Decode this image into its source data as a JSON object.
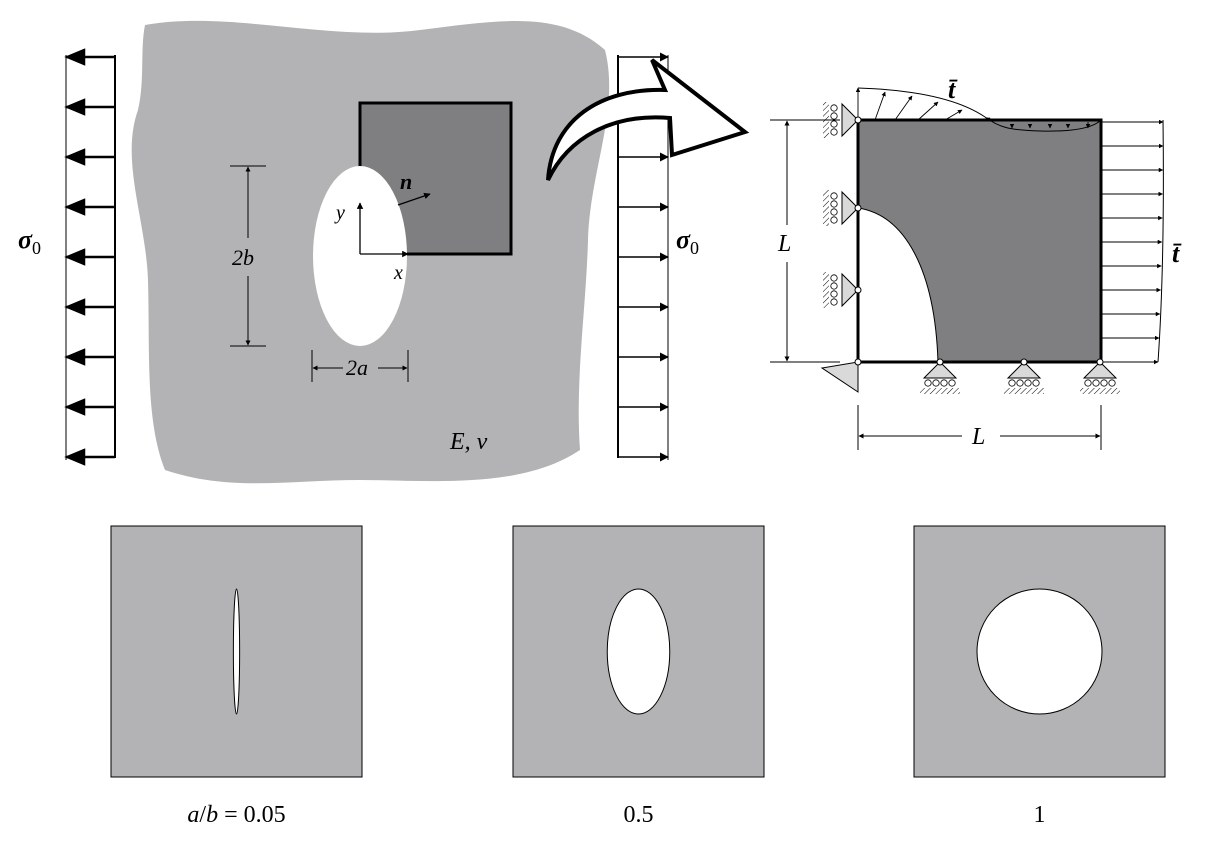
{
  "labels": {
    "sigma_left": "σ",
    "sigma_left_sub": "0",
    "sigma_right": "σ",
    "sigma_right_sub": "0",
    "two_b": "2b",
    "two_a": "2a",
    "axis_x": "x",
    "axis_y": "y",
    "normal": "n",
    "material": "E, ν",
    "L_vertical": "L",
    "L_horizontal": "L",
    "traction_top": "t̄",
    "traction_right": "t̄"
  },
  "panels": [
    {
      "aspect_ratio": 0.05,
      "caption": "a/b = 0.05"
    },
    {
      "aspect_ratio": 0.5,
      "caption": "0.5"
    },
    {
      "aspect_ratio": 1,
      "caption": "1"
    }
  ],
  "colors": {
    "plate": "#b3b3b5",
    "quarter": "#7f7f81",
    "hole": "#ffffff",
    "stroke": "#000000",
    "support": "#d9d9d9"
  }
}
